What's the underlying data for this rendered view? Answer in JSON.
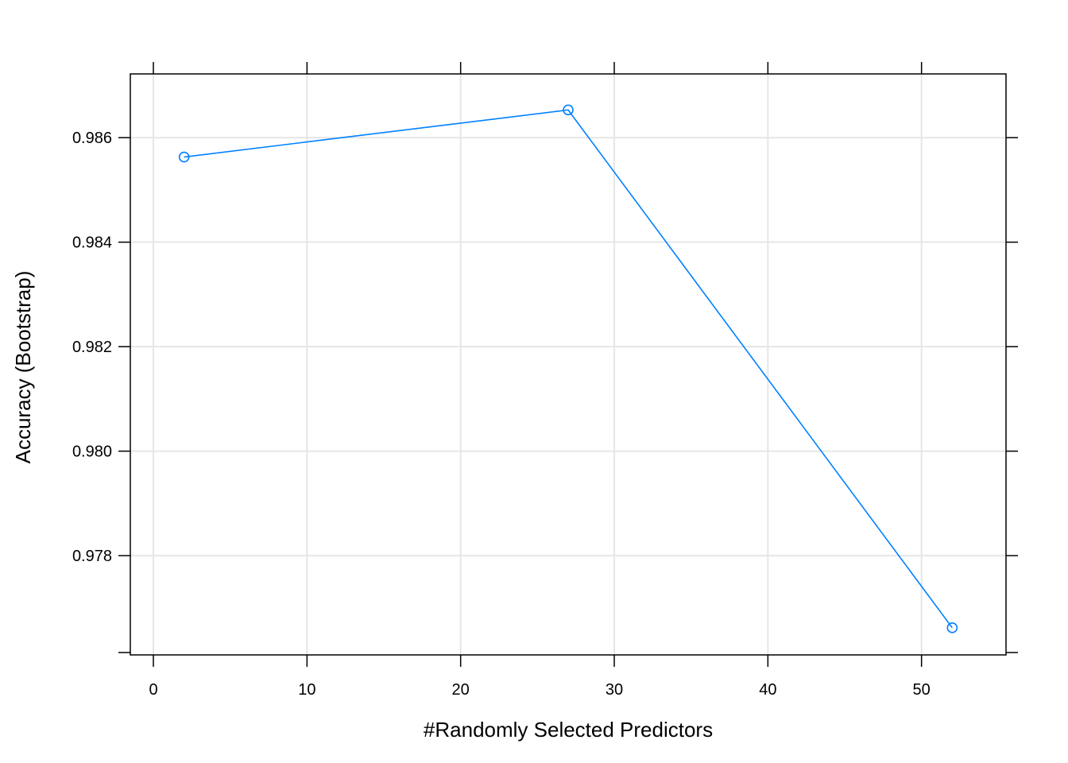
{
  "chart_data": {
    "type": "line",
    "xlabel": "#Randomly Selected Predictors",
    "ylabel": "Accuracy (Bootstrap)",
    "x_ticks": [
      0,
      10,
      20,
      30,
      40,
      50
    ],
    "y_ticks": [
      0.978,
      0.98,
      0.982,
      0.984,
      0.986
    ],
    "y_tick_labels": [
      "0.978",
      "0.980",
      "0.982",
      "0.984",
      "0.986"
    ],
    "xlim": [
      -1.5,
      55.5
    ],
    "ylim": [
      0.9761,
      0.98722
    ],
    "grid": true,
    "series": [
      {
        "x": [
          2,
          27,
          52
        ],
        "y": [
          0.98563,
          0.98653,
          0.97662
        ],
        "color": "#0080ff",
        "marker": "open-circle"
      }
    ]
  }
}
